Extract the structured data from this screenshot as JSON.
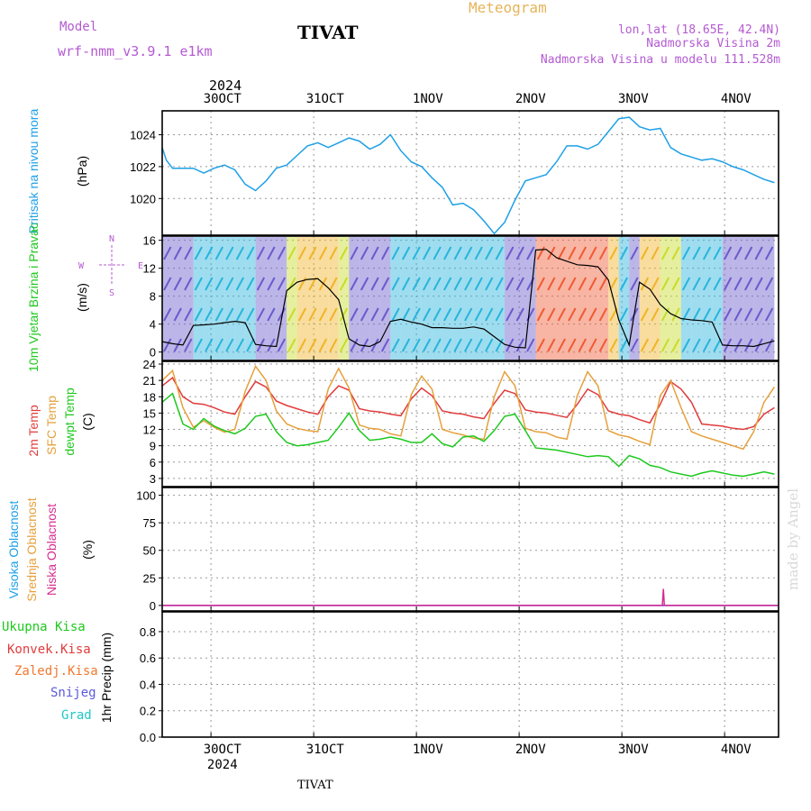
{
  "header": {
    "model_label": "Model",
    "model_name": "wrf-nmm_v3.9.1 e1km",
    "station": "TIVAT",
    "product": "Meteogram",
    "coords": "lon,lat (18.65E, 42.4N)",
    "elevation": "Nadmorska Visina 2m",
    "model_elevation": "Nadmorska Visina u modelu 111.528m",
    "footer_station": "TIVAT",
    "watermark": "made by Angel"
  },
  "colors": {
    "pressure": "#1ea0e6",
    "t2m": "#e03c3c",
    "sfc": "#e6a03c",
    "dewpt": "#1ec81e",
    "header_purple": "#b45ad2",
    "header_orange": "#e6b45a",
    "grid": "#999999"
  },
  "time_axis": {
    "year_label": "2024",
    "day_labels": [
      "30OCT",
      "31OCT",
      "1NOV",
      "2NOV",
      "3NOV",
      "4NOV"
    ]
  },
  "chart_data": [
    {
      "id": "pressure",
      "type": "line",
      "title": "Pritisak na nivou mora",
      "ylabel": "(hPa)",
      "ylim": [
        1017.7,
        1025.5
      ],
      "yticks": [
        1020,
        1022,
        1024
      ],
      "grid": true,
      "series": [
        {
          "color": "#1ea0e6",
          "x": [
            0,
            0.2,
            0.5,
            1,
            1.5,
            2,
            2.5,
            3,
            3.5,
            4,
            4.5,
            5,
            5.5,
            6,
            6.5,
            7,
            7.5,
            8,
            8.5,
            9,
            9.5,
            10,
            10.5,
            11,
            11.5,
            12,
            12.5,
            13,
            13.5,
            14,
            14.5,
            15,
            15.5,
            16,
            16.5,
            17,
            17.5,
            18,
            18.5,
            19,
            19.5,
            20,
            20.5,
            21,
            21.5,
            22,
            22.5,
            23,
            23.5,
            24,
            24.5,
            25,
            25.5,
            26,
            26.5,
            27,
            27.5,
            28,
            28.5,
            29,
            29.5
          ],
          "values": [
            1023.2,
            1022.4,
            1021.9,
            1021.9,
            1021.9,
            1021.6,
            1021.9,
            1022.1,
            1021.8,
            1020.9,
            1020.5,
            1021.1,
            1021.9,
            1022.1,
            1022.7,
            1023.3,
            1023.5,
            1023.2,
            1023.5,
            1023.8,
            1023.6,
            1023.1,
            1023.4,
            1024.0,
            1023.0,
            1022.3,
            1022.0,
            1021.3,
            1020.7,
            1019.6,
            1019.7,
            1019.3,
            1018.6,
            1017.8,
            1018.5,
            1019.9,
            1021.1,
            1021.3,
            1021.5,
            1022.3,
            1023.3,
            1023.3,
            1023.1,
            1023.4,
            1024.2,
            1025.0,
            1025.1,
            1024.5,
            1024.3,
            1024.4,
            1023.2,
            1022.8,
            1022.6,
            1022.4,
            1022.5,
            1022.3,
            1022.0,
            1021.8,
            1021.5,
            1021.2,
            1021.0
          ]
        }
      ]
    },
    {
      "id": "wind",
      "type": "line",
      "title": "10m Vjetar Brzina i Pravac",
      "ylabel": "(m/s)",
      "ylim": [
        -1.2,
        16.6
      ],
      "yticks": [
        0,
        4,
        8,
        12,
        16
      ],
      "grid": true,
      "compass": {
        "n": "N",
        "s": "S",
        "e": "E",
        "w": "W"
      },
      "series": [
        {
          "color": "#000000",
          "x": [
            0,
            0.5,
            1,
            1.5,
            2,
            2.5,
            3,
            3.5,
            4,
            4.5,
            5,
            5.5,
            6,
            6.5,
            7,
            7.5,
            8,
            8.5,
            9,
            9.5,
            10,
            10.5,
            11,
            11.5,
            12,
            12.5,
            13,
            13.5,
            14,
            14.5,
            15,
            15.5,
            16,
            16.5,
            17,
            17.5,
            18,
            18.5,
            19,
            19.5,
            20,
            20.5,
            21,
            21.5,
            22,
            22.5,
            23,
            23.5,
            24,
            24.5,
            25,
            25.5,
            26,
            26.5,
            27,
            27.5,
            28,
            28.5,
            29,
            29.5
          ],
          "values": [
            1.5,
            1.2,
            1.0,
            3.8,
            3.9,
            4.0,
            4.2,
            4.4,
            4.2,
            1.1,
            0.9,
            0.8,
            8.8,
            10.0,
            10.4,
            10.5,
            9.2,
            7.5,
            1.9,
            1.0,
            0.8,
            1.5,
            4.4,
            4.7,
            4.3,
            4.0,
            3.5,
            3.5,
            3.4,
            3.4,
            3.6,
            3.3,
            2.2,
            1.1,
            0.7,
            0.6,
            14.6,
            14.7,
            13.5,
            13.0,
            12.5,
            12.4,
            12.2,
            10.3,
            4.6,
            1.0,
            10.0,
            9.0,
            6.8,
            5.5,
            4.8,
            4.6,
            4.5,
            4.3,
            1.0,
            0.9,
            0.9,
            0.8,
            1.2,
            1.6
          ]
        }
      ]
    },
    {
      "id": "temperature",
      "type": "line",
      "title": "2m Temp / SFC Temp / dewpt Temp",
      "ylabel": "(C)",
      "ylim": [
        1.5,
        24.5
      ],
      "yticks": [
        3,
        6,
        9,
        12,
        15,
        18,
        21,
        24
      ],
      "grid": true,
      "series": [
        {
          "name": "2m Temp",
          "color": "#e03c3c",
          "x": [
            0,
            0.5,
            1,
            1.5,
            2,
            2.5,
            3,
            3.5,
            4,
            4.5,
            5,
            5.5,
            6,
            6.5,
            7,
            7.5,
            8,
            8.5,
            9,
            9.5,
            10,
            10.5,
            11,
            11.5,
            12,
            12.5,
            13,
            13.5,
            14,
            14.5,
            15,
            15.5,
            16,
            16.5,
            17,
            17.5,
            18,
            18.5,
            19,
            19.5,
            20,
            20.5,
            21,
            21.5,
            22,
            22.5,
            23,
            23.5,
            24,
            24.5,
            25,
            25.5,
            26,
            26.5,
            27,
            27.5,
            28,
            28.5,
            29,
            29.5
          ],
          "values": [
            20,
            21.5,
            18,
            16.8,
            16.6,
            16.0,
            15.2,
            14.8,
            18.0,
            20.8,
            19.8,
            17.2,
            16.4,
            15.8,
            15.2,
            14.8,
            18.0,
            20.0,
            19.2,
            15.8,
            15.4,
            15.2,
            14.8,
            14.5,
            17.6,
            19.6,
            18.2,
            15.4,
            15.0,
            14.8,
            14.3,
            14.0,
            16.8,
            19.2,
            18.6,
            15.6,
            15.2,
            15.0,
            14.6,
            14.2,
            16.6,
            19.4,
            18.4,
            15.4,
            14.8,
            14.5,
            13.8,
            13.2,
            16.6,
            20.8,
            19.4,
            17.0,
            13.0,
            12.8,
            12.6,
            12.2,
            12.0,
            12.5,
            14.8,
            16.0
          ]
        },
        {
          "name": "SFC Temp",
          "color": "#e6a03c",
          "x": [
            0,
            0.5,
            1,
            1.5,
            2,
            2.5,
            3,
            3.5,
            4,
            4.5,
            5,
            5.5,
            6,
            6.5,
            7,
            7.5,
            8,
            8.5,
            9,
            9.5,
            10,
            10.5,
            11,
            11.5,
            12,
            12.5,
            13,
            13.5,
            14,
            14.5,
            15,
            15.5,
            16,
            16.5,
            17,
            17.5,
            18,
            18.5,
            19,
            19.5,
            20,
            20.5,
            21,
            21.5,
            22,
            22.5,
            23,
            23.5,
            24,
            24.5,
            25,
            25.5,
            26,
            26.5,
            27,
            27.5,
            28,
            28.5,
            29,
            29.5
          ],
          "values": [
            21,
            22.8,
            16,
            12.4,
            13.6,
            12.4,
            11.5,
            12.0,
            19.0,
            23.6,
            21.0,
            15.4,
            13.0,
            12.2,
            11.8,
            11.6,
            19.4,
            23.2,
            19.6,
            12.8,
            12.2,
            12.0,
            11.2,
            10.8,
            18.4,
            21.8,
            19.4,
            12.0,
            11.4,
            11.0,
            10.4,
            10.2,
            18.0,
            22.6,
            20.0,
            12.2,
            11.6,
            11.4,
            10.6,
            10.2,
            18.2,
            22.6,
            20.0,
            11.8,
            11.0,
            10.6,
            9.8,
            9.2,
            18.2,
            21.0,
            16.0,
            11.6,
            10.8,
            10.2,
            9.6,
            9.0,
            8.4,
            11.6,
            17.0,
            19.8
          ]
        },
        {
          "name": "dewpt Temp",
          "color": "#1ec81e",
          "x": [
            0,
            0.5,
            1,
            1.5,
            2,
            2.5,
            3,
            3.5,
            4,
            4.5,
            5,
            5.5,
            6,
            6.5,
            7,
            7.5,
            8,
            8.5,
            9,
            9.5,
            10,
            10.5,
            11,
            11.5,
            12,
            12.5,
            13,
            13.5,
            14,
            14.5,
            15,
            15.5,
            16,
            16.5,
            17,
            17.5,
            18,
            18.5,
            19,
            19.5,
            20,
            20.5,
            21,
            21.5,
            22,
            22.5,
            23,
            23.5,
            24,
            24.5,
            25,
            25.5,
            26,
            26.5,
            27,
            27.5,
            28,
            28.5,
            29,
            29.5
          ],
          "values": [
            17,
            18.6,
            13.0,
            12.0,
            14.0,
            12.6,
            11.8,
            11.2,
            12.2,
            14.4,
            14.8,
            11.6,
            9.6,
            9.0,
            9.2,
            9.6,
            10.0,
            12.4,
            15.0,
            11.8,
            10.0,
            10.2,
            10.6,
            10.2,
            9.6,
            9.6,
            11.2,
            9.4,
            8.8,
            10.6,
            10.8,
            9.8,
            11.8,
            14.4,
            14.8,
            11.8,
            8.6,
            8.4,
            8.2,
            7.8,
            7.4,
            7.0,
            7.2,
            7.0,
            5.2,
            7.2,
            6.6,
            5.4,
            5.0,
            4.2,
            3.8,
            3.4,
            4.0,
            4.4,
            4.0,
            3.6,
            3.4,
            3.8,
            4.2,
            3.8
          ]
        }
      ]
    },
    {
      "id": "cloud",
      "type": "line",
      "title": "Visoka / Srednja / Niska Oblacnost",
      "ylabel": "(%)",
      "ylim": [
        -5,
        107
      ],
      "yticks": [
        0,
        25,
        50,
        75,
        100
      ],
      "grid": true,
      "labels": {
        "high": "Visoka Oblacnost",
        "mid": "Srednja Oblacnost",
        "low": "Niska Oblacnost"
      },
      "series": [
        {
          "name": "Visoka Oblacnost",
          "color": "#2a2aff",
          "x": [
            0,
            29.7
          ],
          "values": [
            0,
            0
          ]
        },
        {
          "name": "Niska Oblacnost",
          "color": "#d62d8f",
          "x": [
            0,
            24.1,
            24.15,
            24.2,
            29.7
          ],
          "values": [
            0,
            0,
            15,
            0,
            0
          ]
        }
      ]
    },
    {
      "id": "precip",
      "type": "line",
      "title": "1hr Precip",
      "ylabel": "(mm)",
      "ylim": [
        0,
        0.95
      ],
      "yticks": [
        0,
        0.2,
        0.4,
        0.6,
        0.8
      ],
      "grid": true,
      "legend": [
        "Ukupna Kisa",
        "Konvek.Kisa",
        "Zaledj.Kisa",
        "Snijeg",
        "Grad"
      ],
      "series": []
    }
  ]
}
